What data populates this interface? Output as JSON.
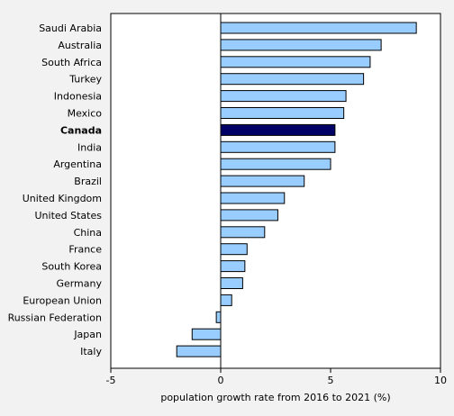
{
  "chart_data": {
    "type": "bar",
    "orientation": "horizontal",
    "categories": [
      "Saudi Arabia",
      "Australia",
      "South Africa",
      "Turkey",
      "Indonesia",
      "Mexico",
      "Canada",
      "India",
      "Argentina",
      "Brazil",
      "United Kingdom",
      "United States",
      "China",
      "France",
      "South Korea",
      "Germany",
      "European Union",
      "Russian Federation",
      "Japan",
      "Italy"
    ],
    "values": [
      8.9,
      7.3,
      6.8,
      6.5,
      5.7,
      5.6,
      5.2,
      5.2,
      5.0,
      3.8,
      2.9,
      2.6,
      2.0,
      1.2,
      1.1,
      1.0,
      0.5,
      -0.2,
      -1.3,
      -2.0
    ],
    "highlight": "Canada",
    "xlim": [
      -5,
      10
    ],
    "xticks": [
      -5,
      0,
      5,
      10
    ],
    "xlabel": "population growth rate from 2016 to 2021 (%)",
    "ylabel": "",
    "title": "",
    "grid": false,
    "colors": {
      "bar": "#99ccff",
      "highlight_bar": "#000066",
      "bar_stroke": "#000000",
      "plot_background": "#ffffff",
      "page_background": "#f2f2f2"
    }
  }
}
